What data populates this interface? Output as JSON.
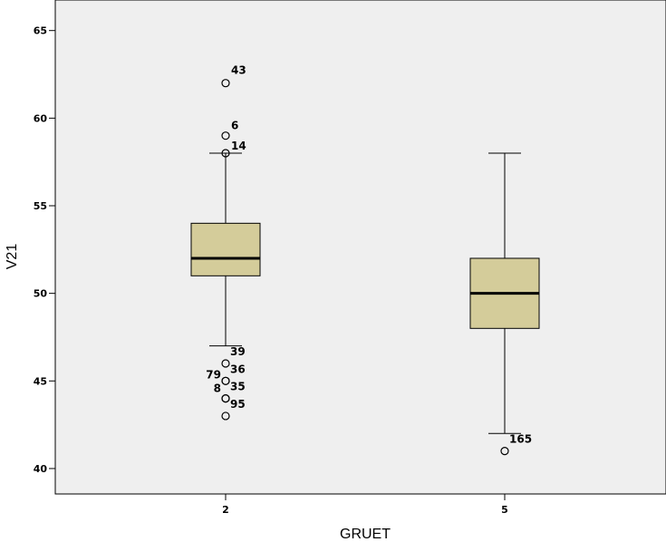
{
  "chart_data": {
    "type": "boxplot",
    "xlabel": "GRUET",
    "ylabel": "V21",
    "ylim": [
      39,
      66
    ],
    "yticks": [
      40,
      45,
      50,
      55,
      60,
      65
    ],
    "grid": false,
    "colors": {
      "plot_bg": "#efefef",
      "box_fill": "#d4cc9a",
      "stroke": "#000000"
    },
    "categories": [
      "2",
      "5"
    ],
    "boxes": [
      {
        "category": "2",
        "whisker_low": 47,
        "q1": 51,
        "median": 52,
        "q3": 54,
        "whisker_high": 58,
        "outliers": [
          {
            "value": 62,
            "label": "43"
          },
          {
            "value": 59,
            "label": "6"
          },
          {
            "value": 58,
            "label": "14"
          },
          {
            "value": 46,
            "label": "39"
          },
          {
            "value": 45,
            "label": "36"
          },
          {
            "value": 45,
            "label": "79"
          },
          {
            "value": 44,
            "label": "35"
          },
          {
            "value": 44,
            "label": "8"
          },
          {
            "value": 43,
            "label": "95"
          }
        ]
      },
      {
        "category": "5",
        "whisker_low": 42,
        "q1": 48,
        "median": 50,
        "q3": 52,
        "whisker_high": 58,
        "outliers": [
          {
            "value": 41,
            "label": "165"
          }
        ]
      }
    ]
  }
}
